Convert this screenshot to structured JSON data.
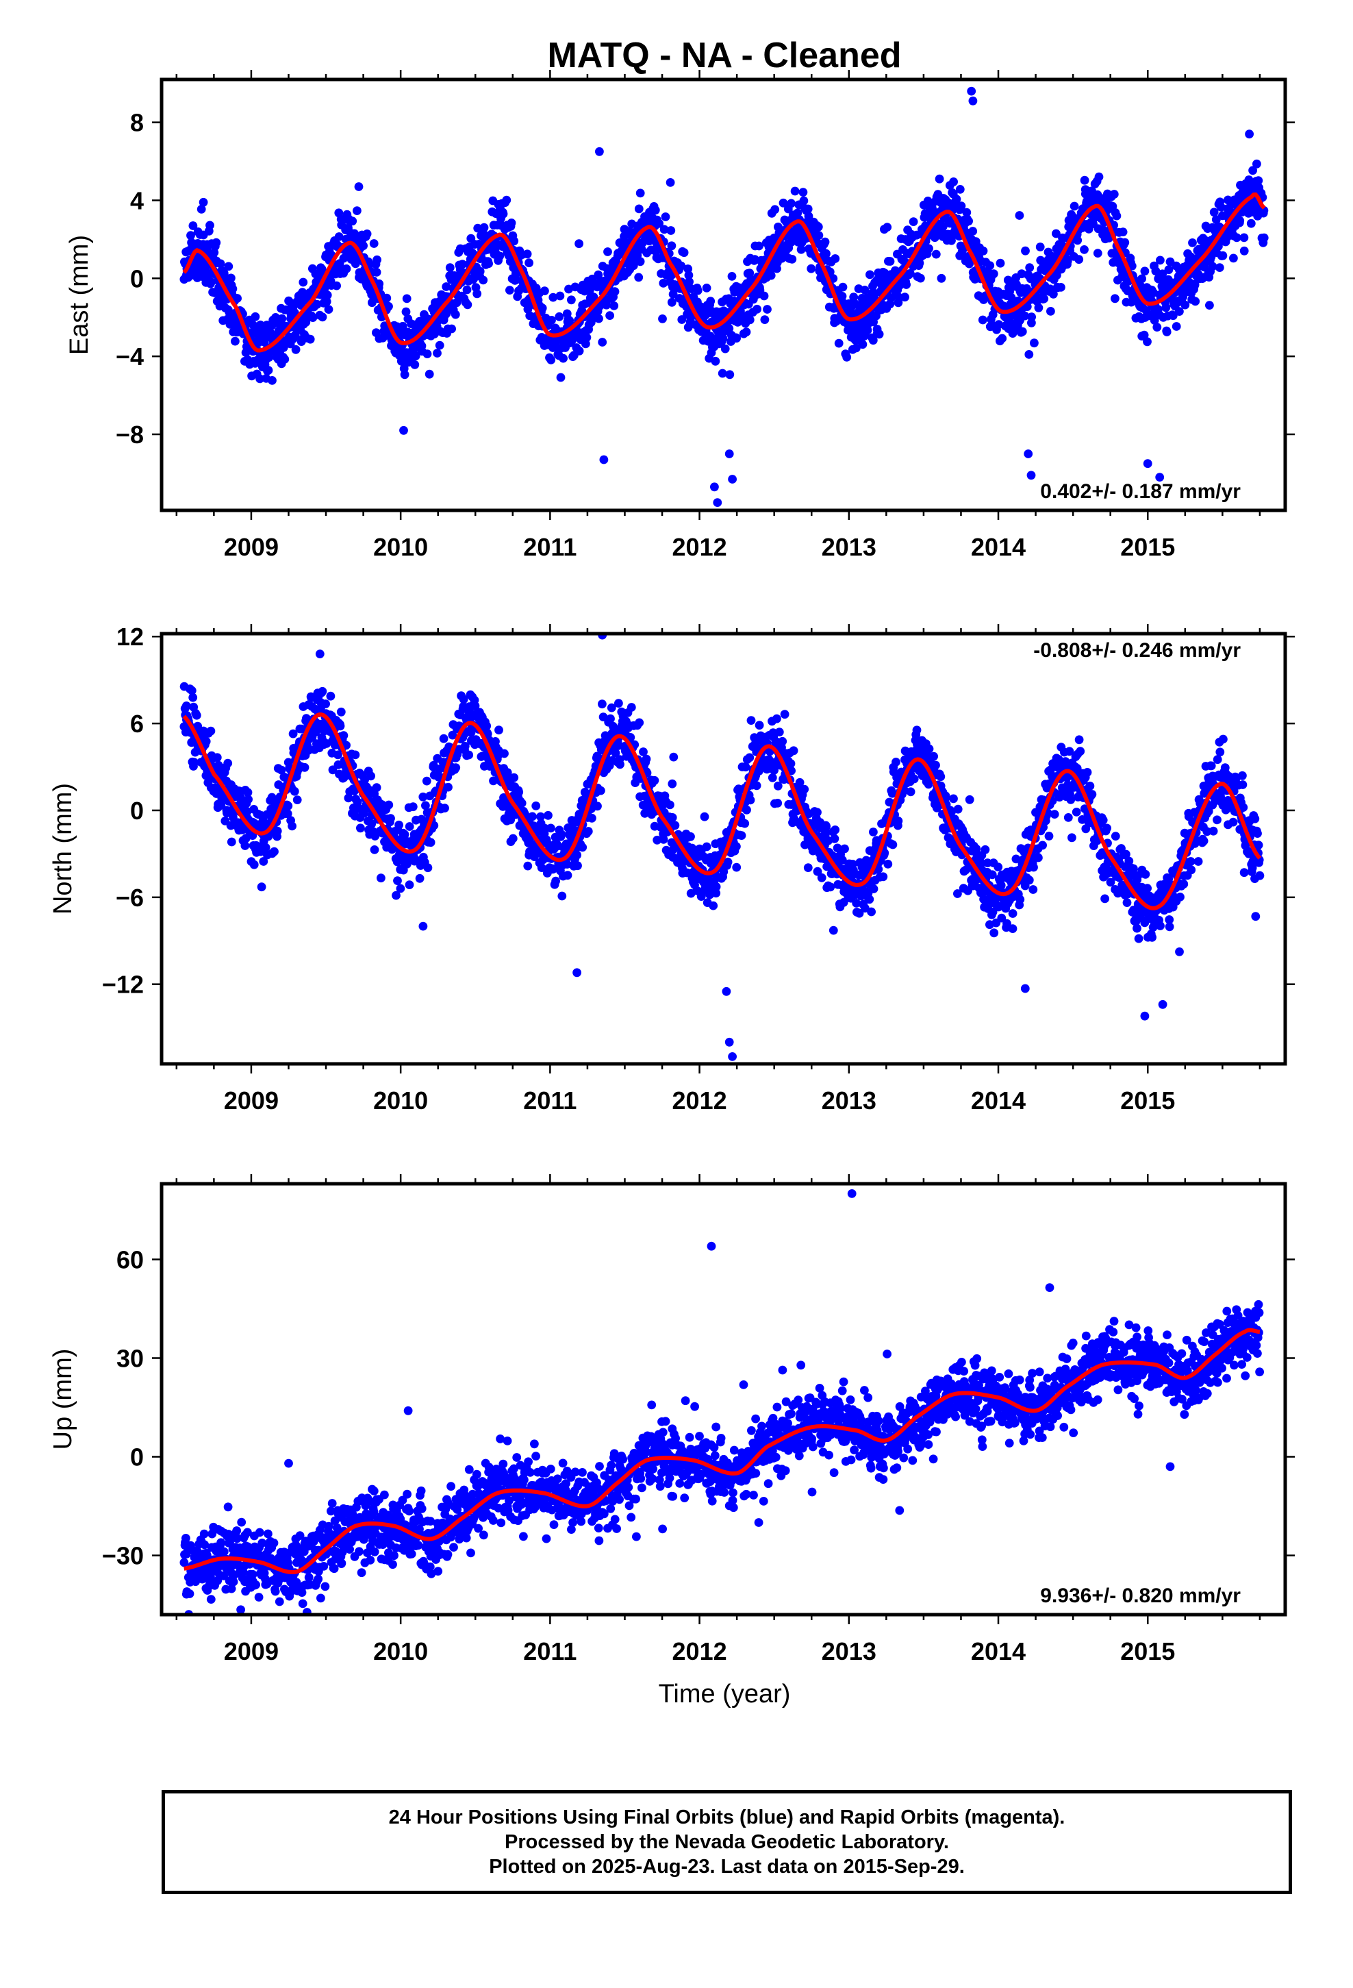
{
  "title": "MATQ  - NA - Cleaned",
  "colors": {
    "final_points": "#0000ff",
    "fit_line": "#ff0000",
    "frame": "#000000"
  },
  "footer": {
    "line1": "24 Hour Positions Using Final Orbits (blue) and Rapid Orbits (magenta).",
    "line2": "Processed by the Nevada Geodetic Laboratory.",
    "line3": "Plotted on 2025-Aug-23. Last data on 2015-Sep-29."
  },
  "chart_data": [
    {
      "type": "scatter",
      "name": "east",
      "ylabel": "East (mm)",
      "xlabel": "",
      "xlim": [
        2008.4,
        2015.92
      ],
      "ylim": [
        -11.9,
        10.2
      ],
      "xticks": [
        2009,
        2010,
        2011,
        2012,
        2013,
        2014,
        2015
      ],
      "yticks": [
        8,
        4,
        0,
        -4,
        -8
      ],
      "rate": "0.402+/- 0.187 mm/yr",
      "rate_position": "bottom-right",
      "fit_line_knots": {
        "x": [
          2008.55,
          2008.65,
          2008.9,
          2009.05,
          2009.4,
          2009.65,
          2009.8,
          2010.0,
          2010.3,
          2010.65,
          2010.8,
          2011.0,
          2011.35,
          2011.65,
          2011.8,
          2012.05,
          2012.35,
          2012.65,
          2012.8,
          2013.0,
          2013.35,
          2013.65,
          2013.8,
          2014.02,
          2014.35,
          2014.65,
          2014.8,
          2015.0,
          2015.35,
          2015.7,
          2015.78
        ],
        "y": [
          0.3,
          1.4,
          -1.5,
          -3.7,
          -1.2,
          1.8,
          0.0,
          -3.3,
          -1.3,
          2.2,
          0.5,
          -2.9,
          -0.9,
          2.6,
          0.8,
          -2.5,
          -0.5,
          2.9,
          1.0,
          -2.1,
          0.2,
          3.4,
          1.5,
          -1.7,
          0.3,
          3.7,
          1.6,
          -1.3,
          0.9,
          4.2,
          3.6
        ]
      },
      "outliers": {
        "x": [
          2008.68,
          2009.72,
          2010.02,
          2011.33,
          2011.36,
          2012.1,
          2012.12,
          2012.2,
          2012.22,
          2013.82,
          2013.83,
          2014.2,
          2014.22,
          2015.0,
          2015.08,
          2015.68
        ],
        "y": [
          3.9,
          4.7,
          -7.8,
          6.5,
          -9.3,
          -10.7,
          -11.5,
          -9.0,
          -10.3,
          9.6,
          9.1,
          -9.0,
          -10.1,
          -9.5,
          -10.2,
          7.4
        ]
      }
    },
    {
      "type": "scatter",
      "name": "north",
      "ylabel": "North (mm)",
      "xlabel": "",
      "xlim": [
        2008.4,
        2015.92
      ],
      "ylim": [
        -17.5,
        12.2
      ],
      "xticks": [
        2009,
        2010,
        2011,
        2012,
        2013,
        2014,
        2015
      ],
      "yticks": [
        12,
        6,
        0,
        -6,
        -12
      ],
      "rate": "-0.808+/- 0.246 mm/yr",
      "rate_position": "top-right",
      "fit_line_knots": {
        "x": [
          2008.55,
          2008.75,
          2009.1,
          2009.45,
          2009.75,
          2010.1,
          2010.45,
          2010.75,
          2011.1,
          2011.45,
          2011.75,
          2012.1,
          2012.45,
          2012.75,
          2013.1,
          2013.45,
          2013.75,
          2014.08,
          2014.45,
          2014.75,
          2015.08,
          2015.48,
          2015.75
        ],
        "y": [
          6.5,
          2.5,
          -1.5,
          6.6,
          1.0,
          -2.7,
          6.0,
          0.5,
          -3.3,
          5.1,
          -0.5,
          -4.2,
          4.4,
          -1.5,
          -5.0,
          3.5,
          -2.5,
          -5.6,
          2.7,
          -3.2,
          -6.6,
          1.8,
          -3.3
        ]
      },
      "outliers": {
        "x": [
          2009.46,
          2010.15,
          2011.18,
          2011.35,
          2012.18,
          2012.2,
          2012.22,
          2014.18,
          2014.98,
          2015.1
        ],
        "y": [
          10.8,
          -8.0,
          -11.2,
          12.1,
          -12.5,
          -16.0,
          -17.0,
          -12.3,
          -14.2,
          -13.4
        ]
      }
    },
    {
      "type": "scatter",
      "name": "up",
      "ylabel": "Up (mm)",
      "xlabel": "Time (year)",
      "xlim": [
        2008.4,
        2015.92
      ],
      "ylim": [
        -48,
        83
      ],
      "xticks": [
        2009,
        2010,
        2011,
        2012,
        2013,
        2014,
        2015
      ],
      "yticks": [
        60,
        30,
        0,
        -30
      ],
      "rate": "9.936+/- 0.820 mm/yr",
      "rate_position": "bottom-right",
      "fit_line_knots": {
        "x": [
          2008.55,
          2008.8,
          2009.05,
          2009.3,
          2009.5,
          2009.7,
          2009.95,
          2010.2,
          2010.4,
          2010.65,
          2010.95,
          2011.25,
          2011.45,
          2011.65,
          2011.95,
          2012.25,
          2012.45,
          2012.75,
          2013.05,
          2013.25,
          2013.45,
          2013.7,
          2014.0,
          2014.25,
          2014.45,
          2014.7,
          2015.05,
          2015.25,
          2015.45,
          2015.65,
          2015.75
        ],
        "y": [
          -34,
          -31,
          -32,
          -35,
          -28,
          -21,
          -21,
          -25,
          -19,
          -11,
          -11,
          -15,
          -8,
          -1,
          -1,
          -5,
          3,
          9,
          8,
          5,
          12,
          19,
          18,
          14,
          21,
          28,
          28,
          24,
          31,
          38,
          38
        ]
      },
      "outliers": {
        "x": [
          2009.25,
          2010.05,
          2012.08,
          2013.02,
          2015.15
        ],
        "y": [
          -2,
          14,
          64,
          80,
          -3
        ]
      }
    }
  ]
}
